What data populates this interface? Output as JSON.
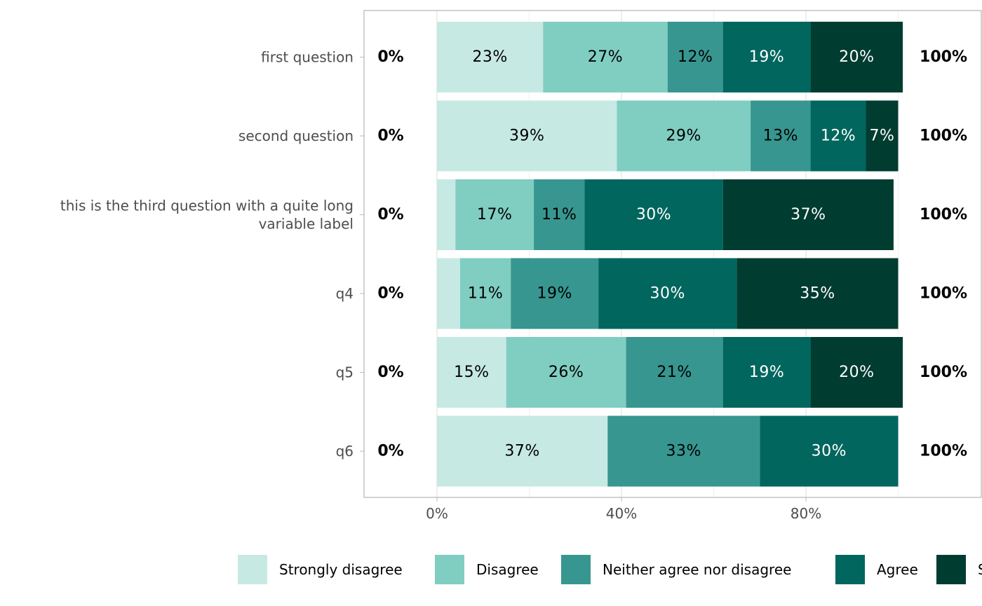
{
  "chart_data": {
    "type": "bar",
    "orientation": "horizontal",
    "stacked": true,
    "categories": [
      "first question",
      "second question",
      "this is the third question with a quite long\nvariable label",
      "q4",
      "q5",
      "q6"
    ],
    "series": [
      {
        "name": "Strongly disagree",
        "color": "#c7e9e3",
        "label_color": "#000000",
        "values": [
          23,
          39,
          4,
          5,
          15,
          37
        ]
      },
      {
        "name": "Disagree",
        "color": "#80cdc1",
        "label_color": "#000000",
        "values": [
          27,
          29,
          17,
          11,
          26,
          0
        ]
      },
      {
        "name": "Neither agree nor disagree",
        "color": "#379690",
        "label_color": "#000000",
        "values": [
          12,
          13,
          11,
          19,
          21,
          33
        ]
      },
      {
        "name": "Agree",
        "color": "#01665e",
        "label_color": "#ffffff",
        "values": [
          19,
          12,
          30,
          30,
          19,
          30
        ]
      },
      {
        "name": "Strongly agree",
        "color": "#003c30",
        "label_color": "#ffffff",
        "values": [
          20,
          7,
          37,
          35,
          20,
          0
        ]
      }
    ],
    "left_totals": [
      "0%",
      "0%",
      "0%",
      "0%",
      "0%",
      "0%"
    ],
    "right_totals": [
      "100%",
      "100%",
      "100%",
      "100%",
      "100%",
      "100%"
    ],
    "xlim": [
      -16,
      118
    ],
    "x_ticks": [
      0,
      40,
      80
    ],
    "x_tick_labels": [
      "0%",
      "40%",
      "80%"
    ],
    "grid": true,
    "legend_position": "bottom",
    "xlabel": "",
    "ylabel": ""
  }
}
